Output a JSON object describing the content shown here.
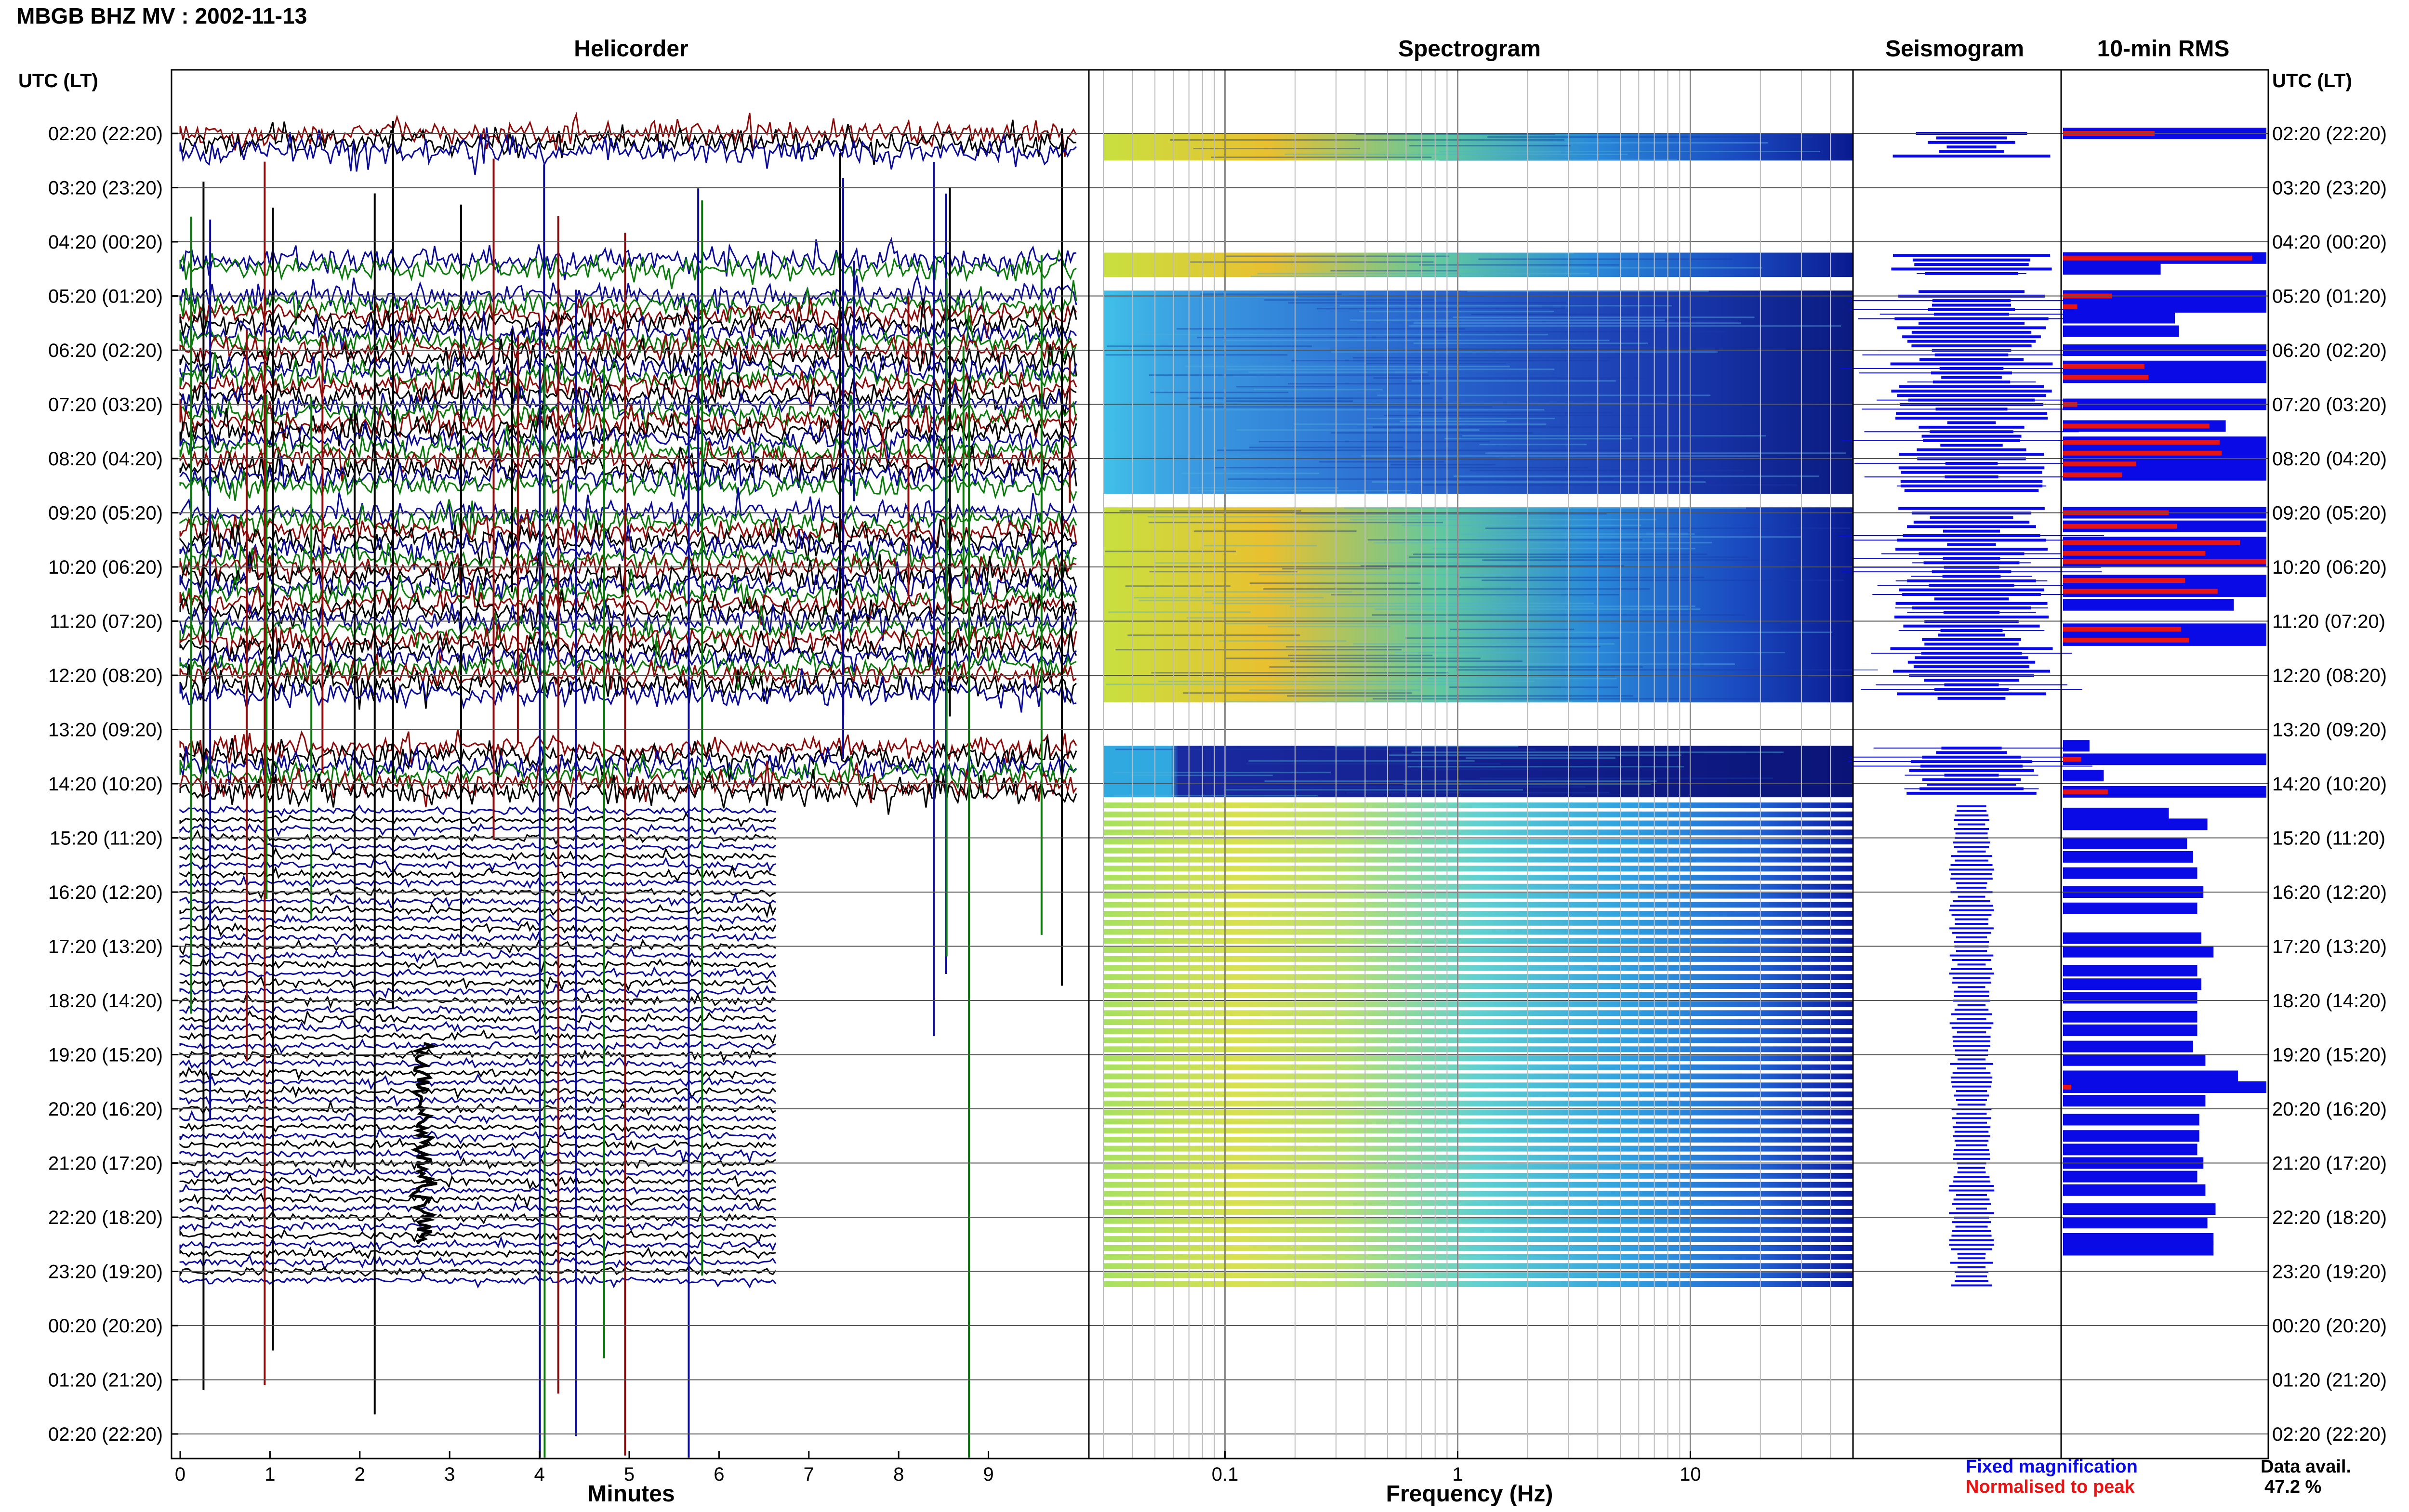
{
  "header": {
    "title": "MBGB BHZ MV : 2002-11-13",
    "panels": {
      "helicorder": "Helicorder",
      "spectrogram": "Spectrogram",
      "seismogram": "Seismogram",
      "rms": "10-min RMS"
    },
    "time_axis_label": "UTC (LT)"
  },
  "footer": {
    "legend_fixed": "Fixed magnification",
    "legend_normalised": "Normalised to peak",
    "availability_label": "Data avail.",
    "availability_value": "47.2 %"
  },
  "colors": {
    "trace_black": "#000000",
    "trace_blue": "#0a0a96",
    "trace_red": "#8c0a0a",
    "trace_green": "#0a7a0a",
    "rms_fixed": "#0a0ae6",
    "rms_normalised": "#e61414"
  },
  "chart_data": {
    "type": "heatmap",
    "time_labels": [
      "02:20 (22:20)",
      "03:20 (23:20)",
      "04:20 (00:20)",
      "05:20 (01:20)",
      "06:20 (02:20)",
      "07:20 (03:20)",
      "08:20 (04:20)",
      "09:20 (05:20)",
      "10:20 (06:20)",
      "11:20 (07:20)",
      "12:20 (08:20)",
      "13:20 (09:20)",
      "14:20 (10:20)",
      "15:20 (11:20)",
      "16:20 (12:20)",
      "17:20 (13:20)",
      "18:20 (14:20)",
      "19:20 (15:20)",
      "20:20 (16:20)",
      "21:20 (17:20)",
      "22:20 (18:20)",
      "23:20 (19:20)",
      "00:20 (20:20)",
      "01:20 (21:20)",
      "02:20 (22:20)"
    ],
    "helicorder": {
      "xlabel": "Minutes",
      "xlim": [
        0,
        10
      ],
      "x_ticks": [
        0,
        1,
        2,
        3,
        4,
        5,
        6,
        7,
        8,
        9
      ]
    },
    "spectrogram": {
      "xlabel": "Frequency (Hz)",
      "x_scale": "log",
      "xlim": [
        0.03,
        50
      ],
      "x_ticks": [
        0.1,
        1,
        10
      ],
      "x_tick_labels": [
        "0.1",
        "1",
        "10"
      ]
    },
    "segments": [
      {
        "start": 0.0,
        "end": 0.5,
        "mode": "normalised"
      },
      {
        "start": 2.2,
        "end": 2.65,
        "mode": "normalised"
      },
      {
        "start": 2.9,
        "end": 6.65,
        "mode": "normalised"
      },
      {
        "start": 6.9,
        "end": 10.5,
        "mode": "normalised"
      },
      {
        "start": 11.3,
        "end": 12.25,
        "mode": "normalised"
      },
      {
        "start": 12.4,
        "end": 21.35,
        "mode": "fixed"
      }
    ],
    "rms_rows": [
      {
        "hour": 0.0,
        "fixed": 1.0,
        "norm": 0.45
      },
      {
        "hour": 2.3,
        "fixed": 1.0,
        "norm": 0.93
      },
      {
        "hour": 2.5,
        "fixed": 0.48,
        "norm": 0.0
      },
      {
        "hour": 3.0,
        "fixed": 1.0,
        "norm": 0.24
      },
      {
        "hour": 3.2,
        "fixed": 1.0,
        "norm": 0.07
      },
      {
        "hour": 3.4,
        "fixed": 0.55,
        "norm": 0.0
      },
      {
        "hour": 3.65,
        "fixed": 0.57,
        "norm": 0.0
      },
      {
        "hour": 4.0,
        "fixed": 1.0,
        "norm": 0.0
      },
      {
        "hour": 4.3,
        "fixed": 1.0,
        "norm": 0.4
      },
      {
        "hour": 4.5,
        "fixed": 1.0,
        "norm": 0.42
      },
      {
        "hour": 5.0,
        "fixed": 1.0,
        "norm": 0.07
      },
      {
        "hour": 5.4,
        "fixed": 0.8,
        "norm": 0.72
      },
      {
        "hour": 5.7,
        "fixed": 1.0,
        "norm": 0.77
      },
      {
        "hour": 5.9,
        "fixed": 1.0,
        "norm": 0.78
      },
      {
        "hour": 6.1,
        "fixed": 1.0,
        "norm": 0.36
      },
      {
        "hour": 6.3,
        "fixed": 1.0,
        "norm": 0.29
      },
      {
        "hour": 7.0,
        "fixed": 1.0,
        "norm": 0.52
      },
      {
        "hour": 7.25,
        "fixed": 1.0,
        "norm": 0.56
      },
      {
        "hour": 7.55,
        "fixed": 1.0,
        "norm": 0.87
      },
      {
        "hour": 7.75,
        "fixed": 1.0,
        "norm": 0.7
      },
      {
        "hour": 7.9,
        "fixed": 1.0,
        "norm": 1.0
      },
      {
        "hour": 8.25,
        "fixed": 1.0,
        "norm": 0.6
      },
      {
        "hour": 8.45,
        "fixed": 1.0,
        "norm": 0.76
      },
      {
        "hour": 8.7,
        "fixed": 0.84,
        "norm": 0.0
      },
      {
        "hour": 9.15,
        "fixed": 1.0,
        "norm": 0.58
      },
      {
        "hour": 9.35,
        "fixed": 1.0,
        "norm": 0.62
      },
      {
        "hour": 11.3,
        "fixed": 0.13,
        "norm": 0.0
      },
      {
        "hour": 11.55,
        "fixed": 1.0,
        "norm": 0.09
      },
      {
        "hour": 11.85,
        "fixed": 0.2,
        "norm": 0.0
      },
      {
        "hour": 12.15,
        "fixed": 1.0,
        "norm": 0.22
      },
      {
        "hour": 12.55,
        "fixed": 0.52,
        "norm": 0.0
      },
      {
        "hour": 12.75,
        "fixed": 0.71,
        "norm": 0.0
      },
      {
        "hour": 13.1,
        "fixed": 0.61,
        "norm": 0.0
      },
      {
        "hour": 13.35,
        "fixed": 0.64,
        "norm": 0.0
      },
      {
        "hour": 13.65,
        "fixed": 0.66,
        "norm": 0.0
      },
      {
        "hour": 14.0,
        "fixed": 0.69,
        "norm": 0.0
      },
      {
        "hour": 14.3,
        "fixed": 0.66,
        "norm": 0.0
      },
      {
        "hour": 14.85,
        "fixed": 0.68,
        "norm": 0.0
      },
      {
        "hour": 15.1,
        "fixed": 0.74,
        "norm": 0.0
      },
      {
        "hour": 15.45,
        "fixed": 0.66,
        "norm": 0.0
      },
      {
        "hour": 15.7,
        "fixed": 0.68,
        "norm": 0.0
      },
      {
        "hour": 15.95,
        "fixed": 0.66,
        "norm": 0.0
      },
      {
        "hour": 16.3,
        "fixed": 0.66,
        "norm": 0.0
      },
      {
        "hour": 16.55,
        "fixed": 0.66,
        "norm": 0.0
      },
      {
        "hour": 16.85,
        "fixed": 0.64,
        "norm": 0.0
      },
      {
        "hour": 17.1,
        "fixed": 0.7,
        "norm": 0.0
      },
      {
        "hour": 17.4,
        "fixed": 0.86,
        "norm": 0.0
      },
      {
        "hour": 17.6,
        "fixed": 1.0,
        "norm": 0.04
      },
      {
        "hour": 17.85,
        "fixed": 0.7,
        "norm": 0.0
      },
      {
        "hour": 18.2,
        "fixed": 0.67,
        "norm": 0.0
      },
      {
        "hour": 18.5,
        "fixed": 0.67,
        "norm": 0.0
      },
      {
        "hour": 18.75,
        "fixed": 0.66,
        "norm": 0.0
      },
      {
        "hour": 19.0,
        "fixed": 0.69,
        "norm": 0.0
      },
      {
        "hour": 19.25,
        "fixed": 0.66,
        "norm": 0.0
      },
      {
        "hour": 19.5,
        "fixed": 0.7,
        "norm": 0.0
      },
      {
        "hour": 19.85,
        "fixed": 0.75,
        "norm": 0.0
      },
      {
        "hour": 20.1,
        "fixed": 0.71,
        "norm": 0.0
      },
      {
        "hour": 20.4,
        "fixed": 0.74,
        "norm": 0.0
      },
      {
        "hour": 20.6,
        "fixed": 0.74,
        "norm": 0.0
      }
    ]
  }
}
